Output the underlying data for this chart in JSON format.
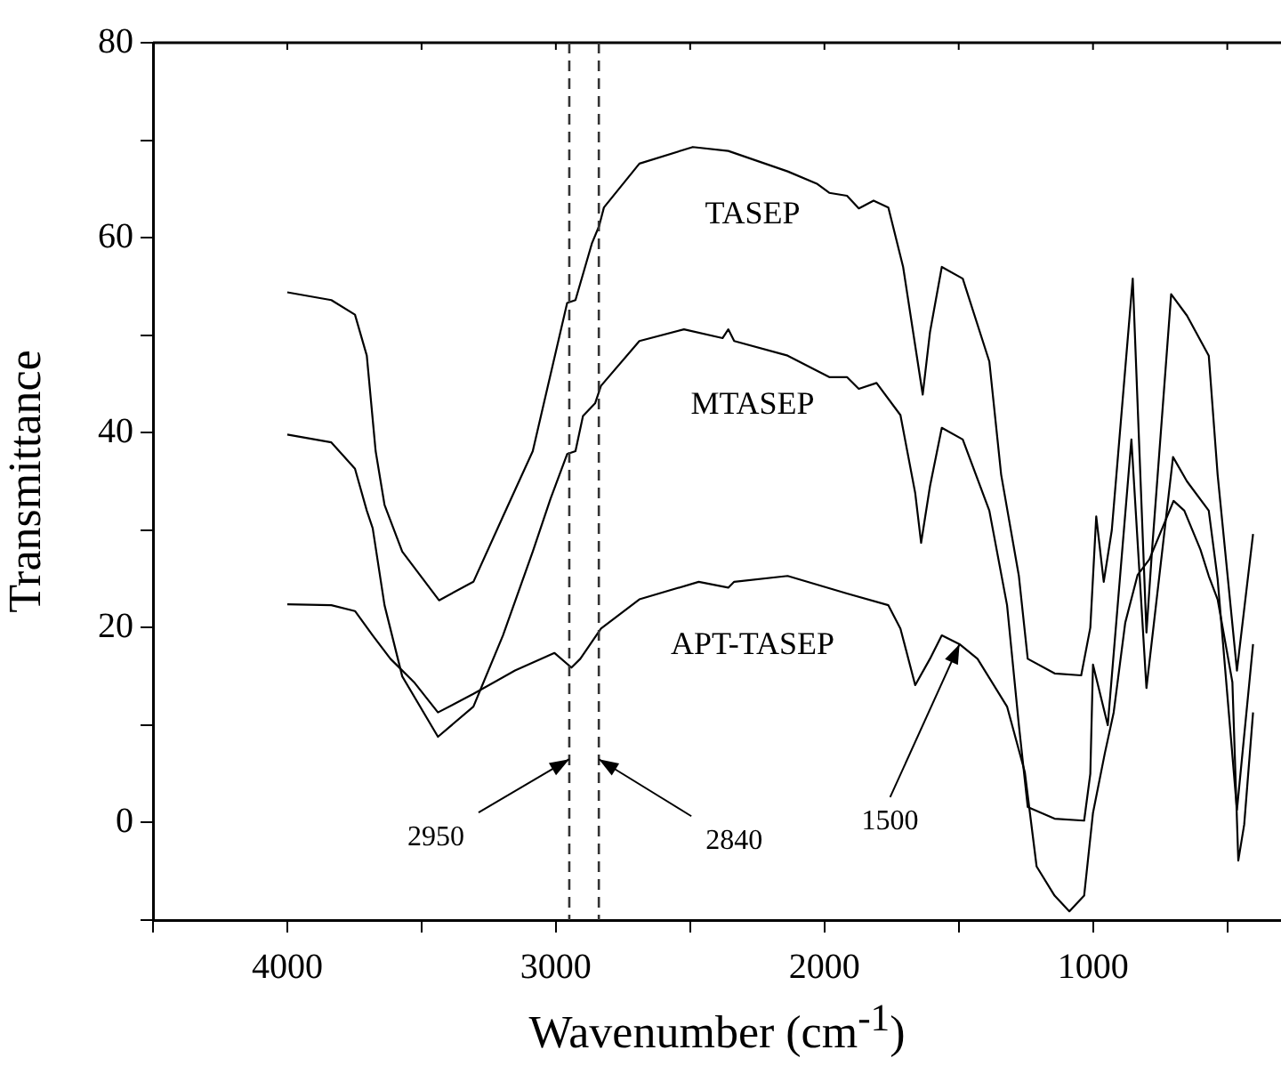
{
  "chart_data": {
    "type": "line",
    "xlabel": "Wavenumber (cm$^{-1}$)",
    "ylabel": "Transmittance",
    "xlim": [
      4500,
      300
    ],
    "ylim": [
      -10,
      80
    ],
    "xticks": [
      {
        "value": 4500,
        "label": null
      },
      4000,
      {
        "value": 3500,
        "label": null
      },
      3000,
      {
        "value": 2500,
        "label": null
      },
      2000,
      {
        "value": 1500,
        "label": null
      },
      1000,
      {
        "value": 500,
        "label": null
      }
    ],
    "yticks": [
      {
        "value": -10,
        "label": null
      },
      0,
      {
        "value": 10,
        "label": null
      },
      20,
      {
        "value": 30,
        "label": null
      },
      40,
      {
        "value": 50,
        "label": null
      },
      60,
      {
        "value": 70,
        "label": null
      },
      80
    ],
    "grid": false,
    "legend": false,
    "marker": "none",
    "line_style": "solid",
    "series": [
      {
        "name": "TASEP",
        "color": "#000000",
        "x": [
          4000,
          3836,
          3748,
          3704,
          3671,
          3638,
          3572,
          3435,
          3307,
          3197,
          3086,
          2958,
          2927,
          2866,
          2839,
          2821,
          2689,
          2490,
          2358,
          2137,
          2026,
          1982,
          1916,
          1872,
          1817,
          1762,
          1707,
          1634,
          1607,
          1563,
          1485,
          1386,
          1342,
          1276,
          1243,
          1143,
          1044,
          1010,
          988,
          960,
          930,
          852,
          801,
          780,
          709,
          650,
          569,
          536,
          464,
          404
        ],
        "values": [
          54.4,
          53.6,
          52.1,
          47.9,
          38.1,
          32.6,
          27.8,
          22.8,
          24.7,
          31.4,
          38.1,
          53.3,
          53.6,
          59.4,
          61.2,
          63.1,
          67.6,
          69.3,
          68.9,
          66.8,
          65.5,
          64.6,
          64.3,
          63.0,
          63.8,
          63.1,
          57.0,
          43.9,
          50.3,
          57.0,
          55.8,
          47.3,
          35.7,
          25.3,
          16.8,
          15.3,
          15.1,
          20,
          31.4,
          24.7,
          30,
          55.8,
          19.5,
          28,
          54.2,
          52,
          47.9,
          35.7,
          15.6,
          29.6
        ]
      },
      {
        "name": "MTASEP",
        "color": "#000000",
        "x": [
          4000,
          3836,
          3748,
          3704,
          3682,
          3638,
          3572,
          3439,
          3307,
          3197,
          3086,
          3020,
          2958,
          2927,
          2899,
          2854,
          2832,
          2689,
          2523,
          2379,
          2358,
          2336,
          2137,
          1982,
          1916,
          1872,
          1806,
          1717,
          1662,
          1640,
          1607,
          1563,
          1485,
          1386,
          1320,
          1276,
          1243,
          1143,
          1033,
          1010,
          1000,
          945,
          857,
          801,
          702,
          650,
          569,
          536,
          464,
          404
        ],
        "values": [
          39.8,
          39.0,
          36.3,
          32.0,
          30.2,
          22.3,
          15.0,
          8.8,
          11.9,
          19.2,
          27.8,
          33.2,
          37.8,
          38.1,
          41.7,
          43.0,
          44.8,
          49.4,
          50.6,
          49.7,
          50.6,
          49.4,
          47.9,
          45.7,
          45.7,
          44.5,
          45.1,
          41.8,
          33.8,
          28.7,
          34.5,
          40.5,
          39.3,
          32.0,
          22.3,
          10,
          1.6,
          0.4,
          0.2,
          5,
          16.2,
          10,
          39.3,
          13.8,
          37.5,
          35,
          32.0,
          25,
          1.3,
          18.3
        ]
      },
      {
        "name": "APT-TASEP",
        "color": "#000000",
        "x": [
          4000,
          3836,
          3748,
          3682,
          3616,
          3528,
          3439,
          3307,
          3152,
          3005,
          2942,
          2909,
          2832,
          2689,
          2468,
          2358,
          2336,
          2137,
          1916,
          1762,
          1717,
          1662,
          1607,
          1563,
          1497,
          1430,
          1320,
          1254,
          1210,
          1143,
          1088,
          1033,
          1000,
          956,
          923,
          880,
          834,
          790,
          730,
          700,
          660,
          600,
          569,
          536,
          481,
          459,
          437,
          404
        ],
        "values": [
          22.4,
          22.3,
          21.7,
          19.2,
          16.8,
          14.4,
          11.3,
          13.2,
          15.6,
          17.4,
          15.9,
          16.8,
          19.9,
          22.9,
          24.7,
          24.1,
          24.7,
          25.3,
          23.5,
          22.3,
          19.9,
          14.1,
          16.8,
          19.2,
          18.3,
          16.8,
          11.9,
          5.2,
          -4.5,
          -7.5,
          -9.1,
          -7.5,
          1.0,
          7.1,
          11.3,
          20.5,
          25.4,
          27,
          31,
          33,
          32,
          28,
          25.3,
          22.9,
          14.4,
          -3.9,
          -0.2,
          11.3
        ]
      }
    ],
    "ref_lines": [
      {
        "axis": "x",
        "value": 2950,
        "line_style": "dashed",
        "color": "#333333"
      },
      {
        "axis": "x",
        "value": 2840,
        "line_style": "dashed",
        "color": "#333333"
      }
    ],
    "annotations": [
      {
        "text": "2950",
        "x": 2950,
        "y": 6.5
      },
      {
        "text": "2840",
        "x": 2840,
        "y": 6.5
      },
      {
        "text": "1500",
        "x": 1497,
        "y": 18.3
      }
    ]
  }
}
